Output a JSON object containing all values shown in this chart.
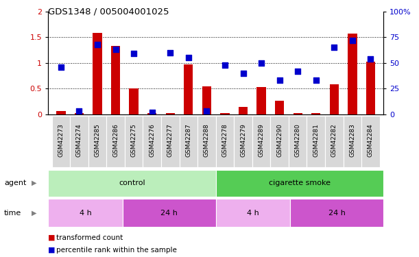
{
  "title": "GDS1348 / 005004001025",
  "samples": [
    "GSM42273",
    "GSM42274",
    "GSM42285",
    "GSM42286",
    "GSM42275",
    "GSM42276",
    "GSM42277",
    "GSM42287",
    "GSM42288",
    "GSM42278",
    "GSM42279",
    "GSM42289",
    "GSM42290",
    "GSM42280",
    "GSM42281",
    "GSM42282",
    "GSM42283",
    "GSM42284"
  ],
  "transformed_count": [
    0.07,
    0.02,
    1.58,
    1.33,
    0.5,
    0.03,
    0.03,
    0.97,
    0.54,
    0.02,
    0.15,
    0.53,
    0.27,
    0.03,
    0.03,
    0.58,
    1.57,
    1.02
  ],
  "percentile_rank": [
    46,
    3,
    68,
    63,
    59,
    2,
    60,
    55,
    3,
    48,
    40,
    50,
    33,
    42,
    33,
    65,
    72,
    54
  ],
  "bar_color": "#cc0000",
  "dot_color": "#0000cc",
  "ylim_left": [
    0,
    2
  ],
  "ylim_right": [
    0,
    100
  ],
  "yticks_left": [
    0,
    0.5,
    1.0,
    1.5,
    2.0
  ],
  "yticks_right": [
    0,
    25,
    50,
    75,
    100
  ],
  "ytick_labels_left": [
    "0",
    "0.5",
    "1",
    "1.5",
    "2"
  ],
  "ytick_labels_right": [
    "0",
    "25",
    "50",
    "75",
    "100%"
  ],
  "agent_groups": [
    {
      "label": "control",
      "start": 0,
      "end": 8,
      "color": "#bbeebb"
    },
    {
      "label": "cigarette smoke",
      "start": 9,
      "end": 17,
      "color": "#55cc55"
    }
  ],
  "time_groups": [
    {
      "label": "4 h",
      "start": 0,
      "end": 3,
      "color": "#eeb0ee"
    },
    {
      "label": "24 h",
      "start": 4,
      "end": 8,
      "color": "#cc55cc"
    },
    {
      "label": "4 h",
      "start": 9,
      "end": 12,
      "color": "#eeb0ee"
    },
    {
      "label": "24 h",
      "start": 13,
      "end": 17,
      "color": "#cc55cc"
    }
  ],
  "legend_bar_label": "transformed count",
  "legend_dot_label": "percentile rank within the sample",
  "agent_label": "agent",
  "time_label": "time",
  "background_color": "#ffffff",
  "bar_width": 0.5,
  "dot_size": 30,
  "xticklabel_bg": "#d8d8d8"
}
